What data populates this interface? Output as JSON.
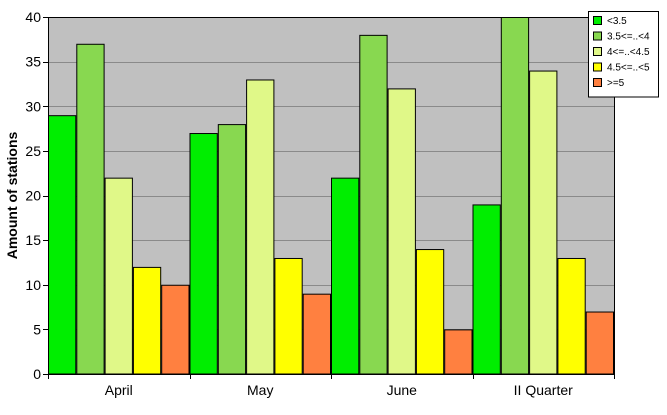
{
  "chart_data": {
    "type": "bar",
    "title": "",
    "xlabel": "",
    "ylabel": "Amount of stations",
    "ylim": [
      0,
      40
    ],
    "yticks": [
      0,
      5,
      10,
      15,
      20,
      25,
      30,
      35,
      40
    ],
    "grid": "horizontal",
    "legend_position": "top-right",
    "categories": [
      "April",
      "May",
      "June",
      "II Quarter"
    ],
    "series": [
      {
        "name": "<3.5",
        "color": "#00ee00",
        "values": [
          29,
          27,
          22,
          19
        ]
      },
      {
        "name": "3.5<=..<4",
        "color": "#88d850",
        "values": [
          37,
          28,
          38,
          40
        ]
      },
      {
        "name": "4<=..<4.5",
        "color": "#e0f888",
        "values": [
          22,
          33,
          32,
          34
        ]
      },
      {
        "name": "4.5<=..<5",
        "color": "#ffff00",
        "values": [
          12,
          13,
          14,
          13
        ]
      },
      {
        "name": ">=5",
        "color": "#ff8040",
        "values": [
          10,
          9,
          5,
          7
        ]
      }
    ],
    "plot_background": "#c0c0c0"
  }
}
